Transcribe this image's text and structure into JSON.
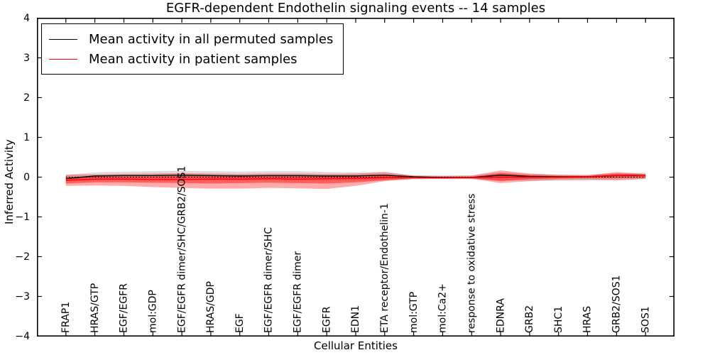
{
  "title": "EGFR-dependent Endothelin signaling events -- 14 samples",
  "legend": {
    "items": [
      {
        "label": "Mean activity in all permuted samples",
        "color": "#000000"
      },
      {
        "label": "Mean activity in patient samples",
        "color": "#ff0000"
      }
    ]
  },
  "axes": {
    "ylabel": "Inferred Activity",
    "xlabel": "Cellular Entities",
    "ytick_labels": [
      "4",
      "3",
      "2",
      "1",
      "0",
      "−1",
      "−2",
      "−3",
      "−4"
    ],
    "ytick_values": [
      4,
      3,
      2,
      1,
      0,
      -1,
      -2,
      -3,
      -4
    ]
  },
  "chart_data": {
    "type": "line",
    "title": "EGFR-dependent Endothelin signaling events -- 14 samples",
    "xlabel": "Cellular Entities",
    "ylabel": "Inferred Activity",
    "ylim": [
      -4,
      4
    ],
    "grid": false,
    "legend_position": "upper left",
    "categories": [
      "FRAP1",
      "HRAS/GTP",
      "EGF/EGFR",
      "mol:GDP",
      "EGF/EGFR dimer/SHC/GRB2/SOS1",
      "HRAS/GDP",
      "EGF",
      "EGF/EGFR dimer/SHC",
      "EGF/EGFR dimer",
      "EGFR",
      "EDN1",
      "ETA receptor/Endothelin-1",
      "mol:GTP",
      "mol:Ca2+",
      "response to oxidative stress",
      "EDNRA",
      "GRB2",
      "SHC1",
      "HRAS",
      "GRB2/SOS1",
      "SOS1"
    ],
    "series": [
      {
        "name": "Mean activity in all permuted samples",
        "color": "#000000",
        "values": [
          -0.04,
          0.03,
          0.04,
          0.04,
          0.05,
          0.04,
          0.03,
          0.04,
          0.04,
          0.03,
          0.03,
          0.05,
          0.01,
          -0.01,
          -0.01,
          0.05,
          0.02,
          0.01,
          0.01,
          0.04,
          0.05
        ]
      },
      {
        "name": "Mean activity in patient samples",
        "color": "#ff0000",
        "values": [
          -0.08,
          -0.05,
          -0.05,
          -0.06,
          -0.06,
          -0.05,
          -0.05,
          -0.04,
          -0.05,
          -0.04,
          -0.03,
          -0.01,
          -0.01,
          -0.02,
          -0.01,
          0.0,
          0.0,
          0.0,
          0.01,
          0.04,
          0.05
        ]
      }
    ],
    "bands": [
      {
        "name": "permuted-range",
        "color": "rgba(90,90,90,0.22)",
        "top": [
          0.06,
          0.12,
          0.14,
          0.15,
          0.16,
          0.15,
          0.14,
          0.15,
          0.15,
          0.13,
          0.12,
          0.14,
          0.04,
          0.04,
          0.04,
          0.12,
          0.08,
          0.06,
          0.06,
          0.1,
          0.11
        ],
        "bottom": [
          -0.09,
          -0.07,
          -0.07,
          -0.07,
          -0.07,
          -0.07,
          -0.08,
          -0.07,
          -0.08,
          -0.08,
          -0.08,
          -0.07,
          -0.05,
          -0.05,
          -0.05,
          -0.08,
          -0.09,
          -0.09,
          -0.09,
          -0.06,
          -0.04
        ]
      },
      {
        "name": "patient-range-outer",
        "color": "rgba(255,0,0,0.33)",
        "top": [
          0.06,
          0.07,
          0.08,
          0.09,
          0.1,
          0.09,
          0.08,
          0.09,
          0.09,
          0.08,
          0.09,
          0.12,
          0.04,
          0.03,
          0.04,
          0.17,
          0.09,
          0.06,
          0.05,
          0.13,
          0.08
        ],
        "bottom": [
          -0.22,
          -0.21,
          -0.22,
          -0.25,
          -0.27,
          -0.29,
          -0.29,
          -0.27,
          -0.28,
          -0.3,
          -0.22,
          -0.1,
          -0.05,
          -0.04,
          -0.04,
          -0.15,
          -0.1,
          -0.07,
          -0.06,
          -0.08,
          -0.05
        ]
      },
      {
        "name": "patient-range-inner",
        "color": "rgba(255,0,0,0.45)",
        "top": [
          0.0,
          0.02,
          0.02,
          0.02,
          0.03,
          0.03,
          0.03,
          0.04,
          0.03,
          0.03,
          0.04,
          0.05,
          0.01,
          0.0,
          0.01,
          0.1,
          0.05,
          0.03,
          0.03,
          0.09,
          0.06
        ],
        "bottom": [
          -0.16,
          -0.13,
          -0.13,
          -0.14,
          -0.15,
          -0.16,
          -0.15,
          -0.14,
          -0.15,
          -0.16,
          -0.13,
          -0.08,
          -0.03,
          -0.03,
          -0.03,
          -0.1,
          -0.05,
          -0.03,
          -0.02,
          -0.02,
          -0.01
        ]
      }
    ],
    "zero_line": {
      "y": 0,
      "style": "dotted",
      "color": "#000000"
    }
  }
}
